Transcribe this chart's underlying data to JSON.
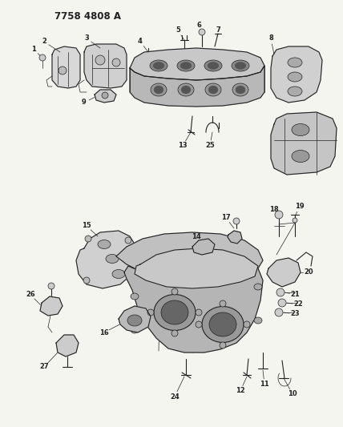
{
  "title": "7758 4808 A",
  "bg_color": "#f5f5f0",
  "line_color": "#222222",
  "title_fontsize": 8.5,
  "label_fontsize": 6.0,
  "figsize": [
    4.28,
    5.33
  ],
  "dpi": 100
}
